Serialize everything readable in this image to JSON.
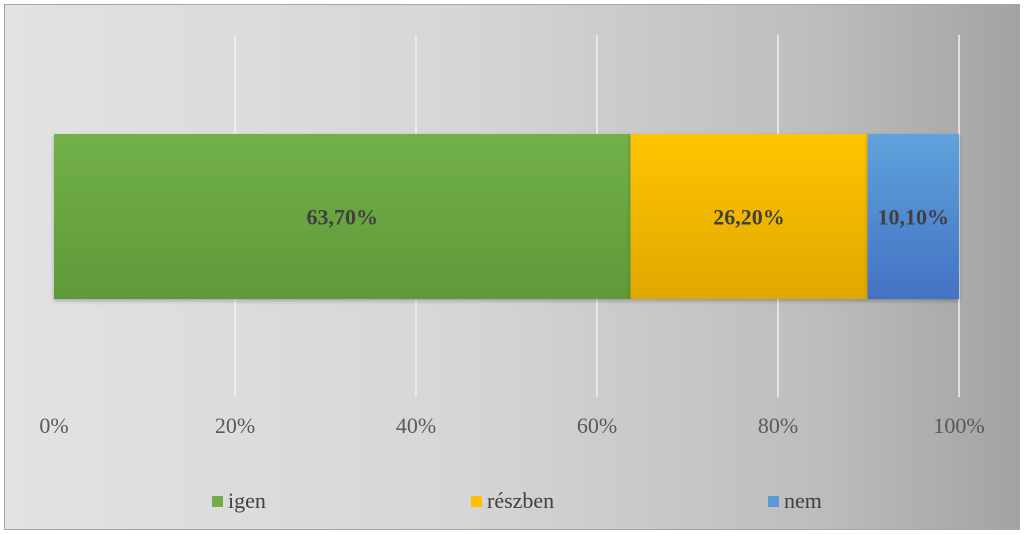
{
  "chart_data": {
    "type": "bar",
    "orientation": "horizontal",
    "stacked": "100%",
    "categories": [
      ""
    ],
    "series": [
      {
        "name": "igen",
        "values": [
          63.7
        ],
        "label": "63,70%",
        "color": "#70ad47"
      },
      {
        "name": "részben",
        "values": [
          26.2
        ],
        "label": "26,20%",
        "color": "#ffc000"
      },
      {
        "name": "nem",
        "values": [
          10.1
        ],
        "label": "10,10%",
        "color": "#5b9bd5"
      }
    ],
    "xlim": [
      0,
      100
    ],
    "x_ticks": [
      "0%",
      "20%",
      "40%",
      "60%",
      "80%",
      "100%"
    ],
    "grid": true,
    "legend_position": "bottom"
  }
}
